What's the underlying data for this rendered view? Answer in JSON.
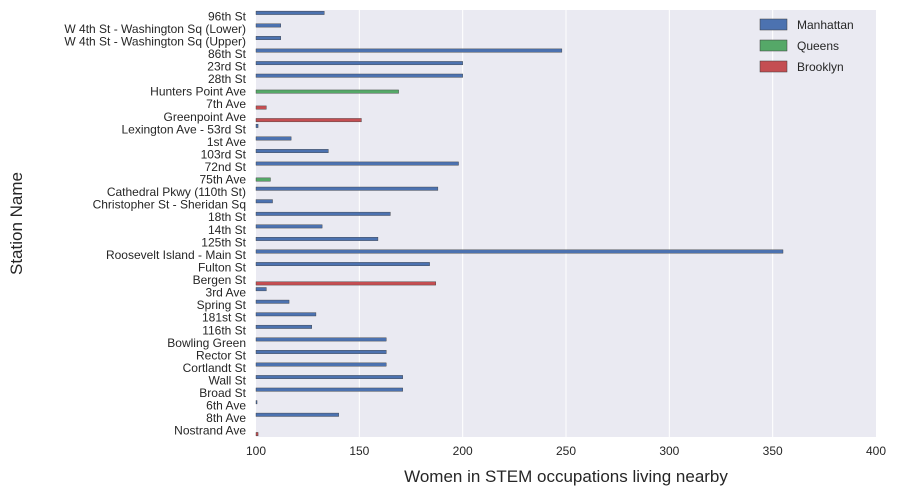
{
  "chart_data": {
    "type": "bar",
    "orientation": "horizontal",
    "xlabel": "Women in STEM occupations living nearby",
    "ylabel": "Station Name",
    "xlim": [
      100,
      400
    ],
    "xticks": [
      "100",
      "150",
      "200",
      "250",
      "300",
      "350",
      "400"
    ],
    "grid": true,
    "legend": "top-right",
    "categories": [
      "96th St",
      "W 4th St - Washington Sq (Lower)",
      "W 4th St - Washington Sq (Upper)",
      "86th St",
      "23rd St",
      "28th St",
      "Hunters Point Ave",
      "7th Ave",
      "Greenpoint Ave",
      "Lexington Ave - 53rd St",
      "1st Ave",
      "103rd St",
      "72nd St",
      "75th Ave",
      "Cathedral Pkwy (110th St)",
      "Christopher St - Sheridan Sq",
      "18th St",
      "14th St",
      "125th St",
      "Roosevelt Island - Main St",
      "Fulton St",
      "Bergen St",
      "3rd Ave",
      "Spring St",
      "181st St",
      "116th St",
      "Bowling Green",
      "Rector St",
      "Cortlandt St",
      "Wall St",
      "Broad St",
      "6th Ave",
      "8th Ave",
      "Nostrand Ave"
    ],
    "series": [
      {
        "name": "Manhattan",
        "color": "#4c72b0",
        "values": [
          133,
          112,
          112,
          248,
          200,
          200,
          null,
          null,
          null,
          101,
          117,
          135,
          198,
          null,
          188,
          108,
          165,
          132,
          159,
          355,
          184,
          null,
          105,
          116,
          129,
          127,
          163,
          163,
          163,
          171,
          171,
          100.5,
          140,
          null
        ]
      },
      {
        "name": "Queens",
        "color": "#55a868",
        "values": [
          null,
          null,
          null,
          null,
          null,
          null,
          169,
          null,
          null,
          null,
          null,
          null,
          null,
          107,
          null,
          null,
          null,
          null,
          null,
          null,
          null,
          null,
          null,
          null,
          null,
          null,
          null,
          null,
          null,
          null,
          null,
          null,
          null,
          null
        ]
      },
      {
        "name": "Brooklyn",
        "color": "#c44e52",
        "values": [
          null,
          null,
          null,
          null,
          null,
          null,
          null,
          105,
          151,
          null,
          null,
          null,
          null,
          null,
          null,
          null,
          null,
          null,
          null,
          null,
          null,
          187,
          null,
          null,
          null,
          null,
          null,
          null,
          null,
          null,
          null,
          null,
          null,
          101
        ]
      }
    ]
  }
}
